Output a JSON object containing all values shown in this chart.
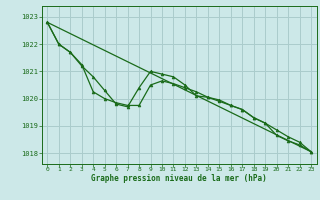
{
  "title": "Graphe pression niveau de la mer (hPa)",
  "bg_color": "#cce8e8",
  "grid_color": "#aacccc",
  "line_color": "#1a6b1a",
  "marker_color": "#1a6b1a",
  "xlim": [
    -0.5,
    23.5
  ],
  "ylim": [
    1017.6,
    1023.4
  ],
  "yticks": [
    1018,
    1019,
    1020,
    1021,
    1022,
    1023
  ],
  "xticks": [
    0,
    1,
    2,
    3,
    4,
    5,
    6,
    7,
    8,
    9,
    10,
    11,
    12,
    13,
    14,
    15,
    16,
    17,
    18,
    19,
    20,
    21,
    22,
    23
  ],
  "series1_x": [
    0,
    1,
    2,
    3,
    4,
    5,
    6,
    7,
    8,
    9,
    10,
    11,
    12,
    13,
    14,
    15,
    16,
    17,
    18,
    19,
    20,
    21,
    22,
    23
  ],
  "series1_y": [
    1022.8,
    1022.0,
    1021.7,
    1021.2,
    1020.8,
    1020.3,
    1019.8,
    1019.7,
    1020.4,
    1021.0,
    1020.9,
    1020.8,
    1020.5,
    1020.1,
    1020.05,
    1019.95,
    1019.75,
    1019.6,
    1019.3,
    1019.1,
    1018.65,
    1018.45,
    1018.3,
    1018.05
  ],
  "series2_x": [
    0,
    1,
    2,
    3,
    4,
    5,
    6,
    7,
    8,
    9,
    10,
    11,
    12,
    13,
    14,
    15,
    16,
    17,
    18,
    19,
    20,
    21,
    22,
    23
  ],
  "series2_y": [
    1022.8,
    1022.0,
    1021.7,
    1021.25,
    1020.25,
    1020.0,
    1019.85,
    1019.75,
    1019.75,
    1020.5,
    1020.65,
    1020.55,
    1020.4,
    1020.25,
    1020.05,
    1019.9,
    1019.75,
    1019.6,
    1019.3,
    1019.1,
    1018.85,
    1018.6,
    1018.4,
    1018.05
  ],
  "series3_x": [
    0,
    23
  ],
  "series3_y": [
    1022.8,
    1018.05
  ]
}
